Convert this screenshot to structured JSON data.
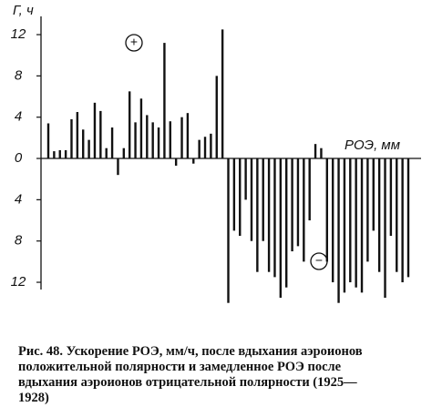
{
  "chart_data": {
    "type": "bar",
    "y_label": "Г, ч",
    "x_label": "РОЭ, мм",
    "annotations": [
      "+",
      "−"
    ],
    "values": [
      3.4,
      0.7,
      0.8,
      0.8,
      3.8,
      4.5,
      2.8,
      1.8,
      5.4,
      4.6,
      1.0,
      3.0,
      -1.6,
      1.0,
      6.5,
      3.5,
      5.8,
      4.2,
      3.5,
      3.0,
      11.2,
      3.6,
      -0.7,
      4.0,
      4.4,
      -0.5,
      1.8,
      2.1,
      2.4,
      8.0,
      12.5,
      -14,
      -7,
      -7.5,
      -4,
      -8,
      -11,
      -8,
      -11,
      -11.5,
      -13.5,
      -12.5,
      -9,
      -8.5,
      -10,
      -6,
      1.4,
      1.0,
      -10,
      -12,
      -14,
      -13,
      -12,
      -12.5,
      -13,
      -10,
      -7,
      -11,
      -13.5,
      -7.5,
      -11,
      -12,
      -11.5
    ],
    "color": "#111111",
    "ylim": [
      -14,
      13
    ],
    "yticks": [
      12,
      8,
      4,
      0,
      {
        "value": -4,
        "label": "4"
      },
      {
        "value": -8,
        "label": "8"
      },
      {
        "value": -12,
        "label": "12"
      }
    ]
  },
  "caption": {
    "lines": [
      "Рис. 48. Ускорение РОЭ, мм/ч, после вдыхания аэроионов",
      "положительной полярности и замедленное РОЭ после",
      "вдыхания аэроионов отрицательной полярности (1925—",
      "1928)"
    ]
  }
}
